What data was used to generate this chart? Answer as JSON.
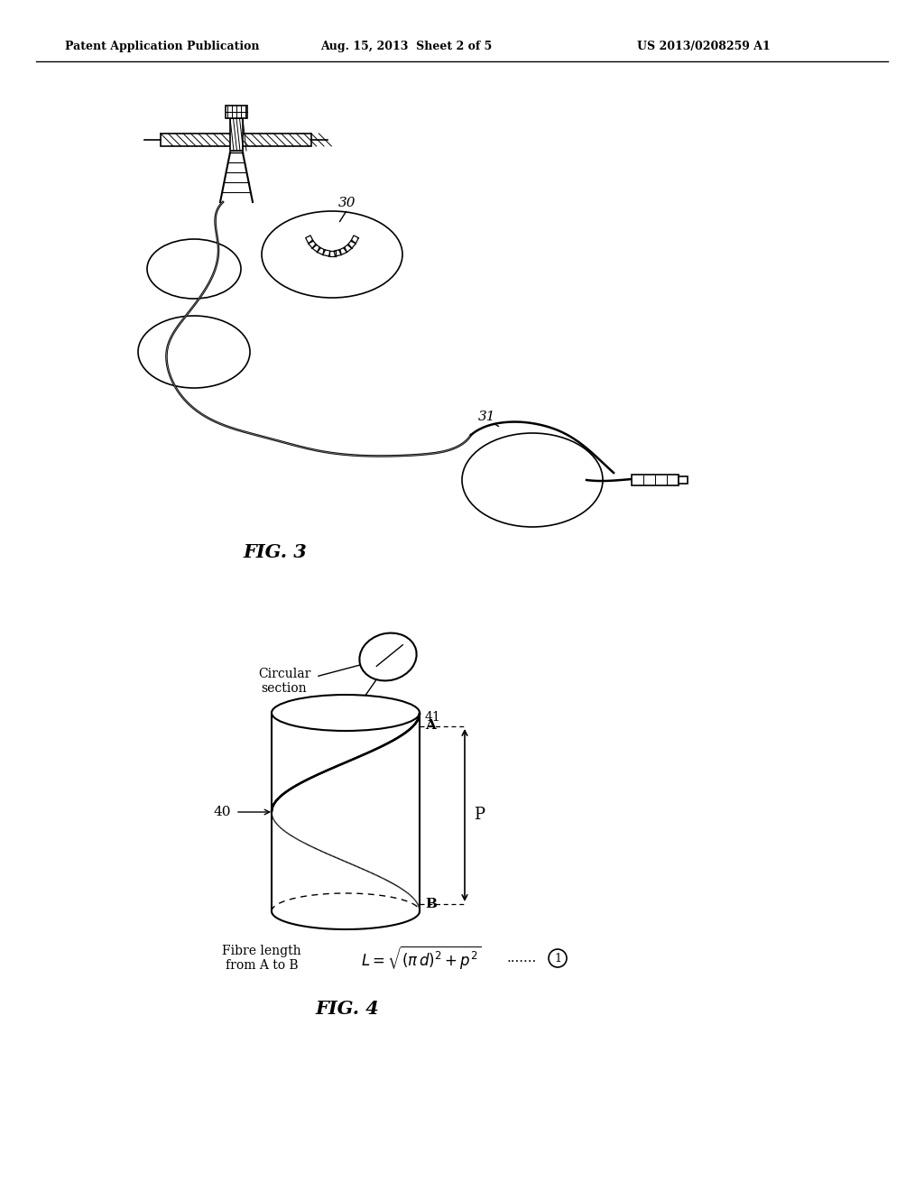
{
  "header_left": "Patent Application Publication",
  "header_mid": "Aug. 15, 2013  Sheet 2 of 5",
  "header_right": "US 2013/0208259 A1",
  "fig3_label": "FIG. 3",
  "fig4_label": "FIG. 4",
  "label_30": "30",
  "label_31": "31",
  "label_40": "40",
  "label_41": "41",
  "label_A": "A",
  "label_B": "B",
  "label_P": "P",
  "label_d": "d",
  "circular_section": "Circular\nsection",
  "fibre_length": "Fibre length\nfrom A to B",
  "bg_color": "#ffffff",
  "line_color": "#000000"
}
